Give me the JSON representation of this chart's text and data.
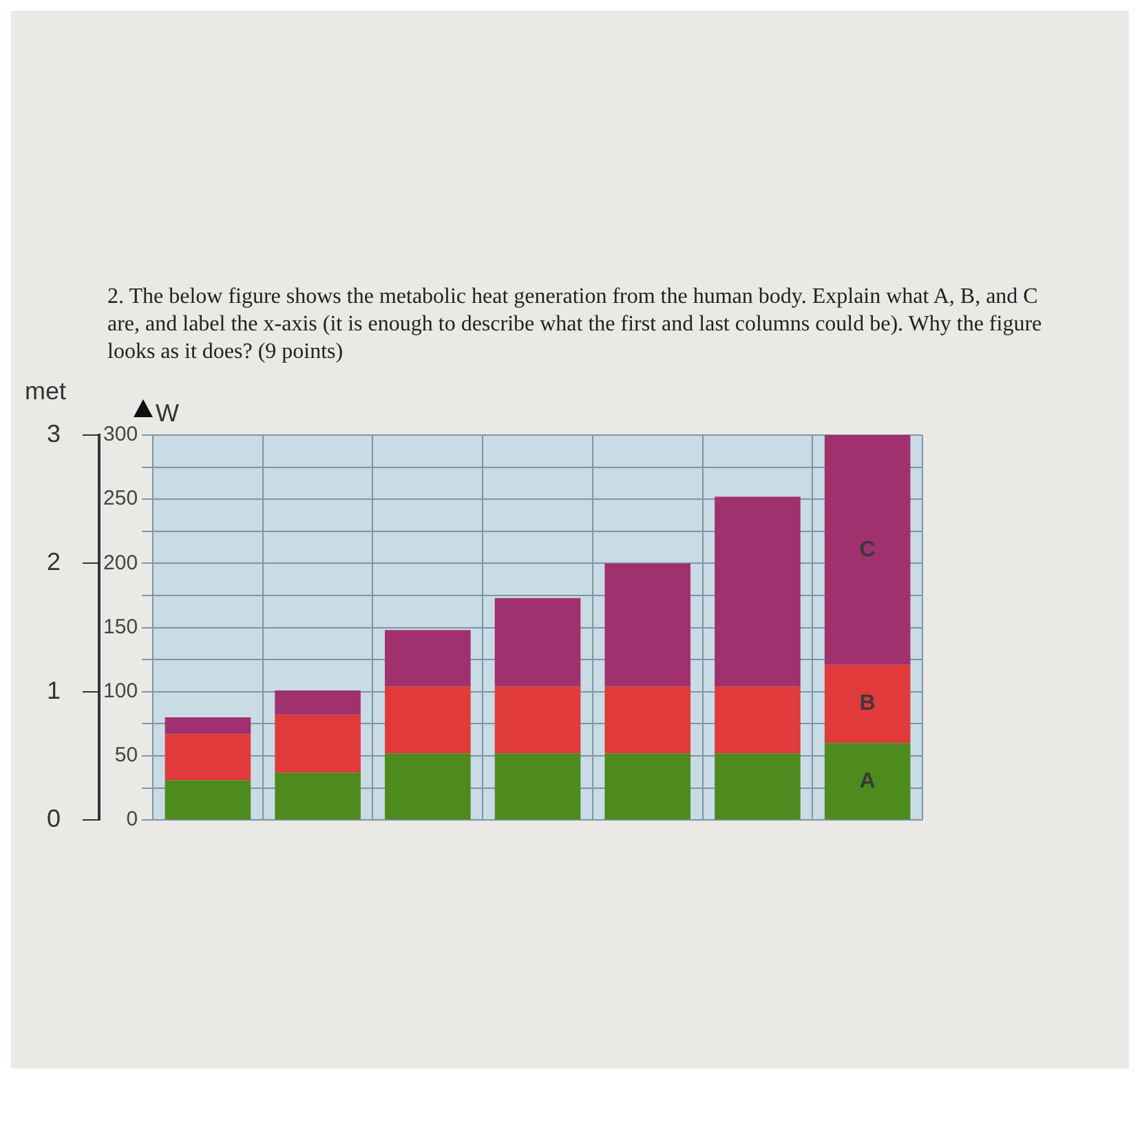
{
  "chart_data": {
    "type": "bar",
    "title": "2. The below figure shows the metabolic heat generation from the human body. Explain what A, B, and C are, and label the x-axis (it is enough to describe what the first and last columns could be). Why the figure looks as it does? (9 points)",
    "ylabel": "W",
    "y2label": "met",
    "stacked": true,
    "categories": [
      null,
      null,
      null,
      null,
      null,
      null,
      null
    ],
    "series": [
      {
        "color": "#4e8a1e",
        "values": [
          31,
          37,
          52,
          52,
          52,
          52,
          60
        ]
      },
      {
        "color": "#e03a3a",
        "values": [
          36,
          45,
          52,
          52,
          52,
          52,
          61
        ]
      },
      {
        "color": "#a0306e",
        "values": [
          13,
          19,
          44,
          69,
          96,
          148,
          179
        ]
      }
    ],
    "ylim": [
      0,
      300
    ],
    "yticks": [
      0,
      {
        "value": 25,
        "label": null
      },
      50,
      {
        "value": 75,
        "label": null
      },
      100,
      {
        "value": 125,
        "label": null
      },
      150,
      {
        "value": 175,
        "label": null
      },
      200,
      {
        "value": 225,
        "label": null
      },
      250,
      {
        "value": 275,
        "label": null
      },
      300
    ],
    "y2lim": [
      0,
      3
    ],
    "y2ticks": [
      0,
      1,
      2,
      3
    ],
    "grid": true,
    "annotations": [
      "A",
      "B",
      "C"
    ]
  }
}
